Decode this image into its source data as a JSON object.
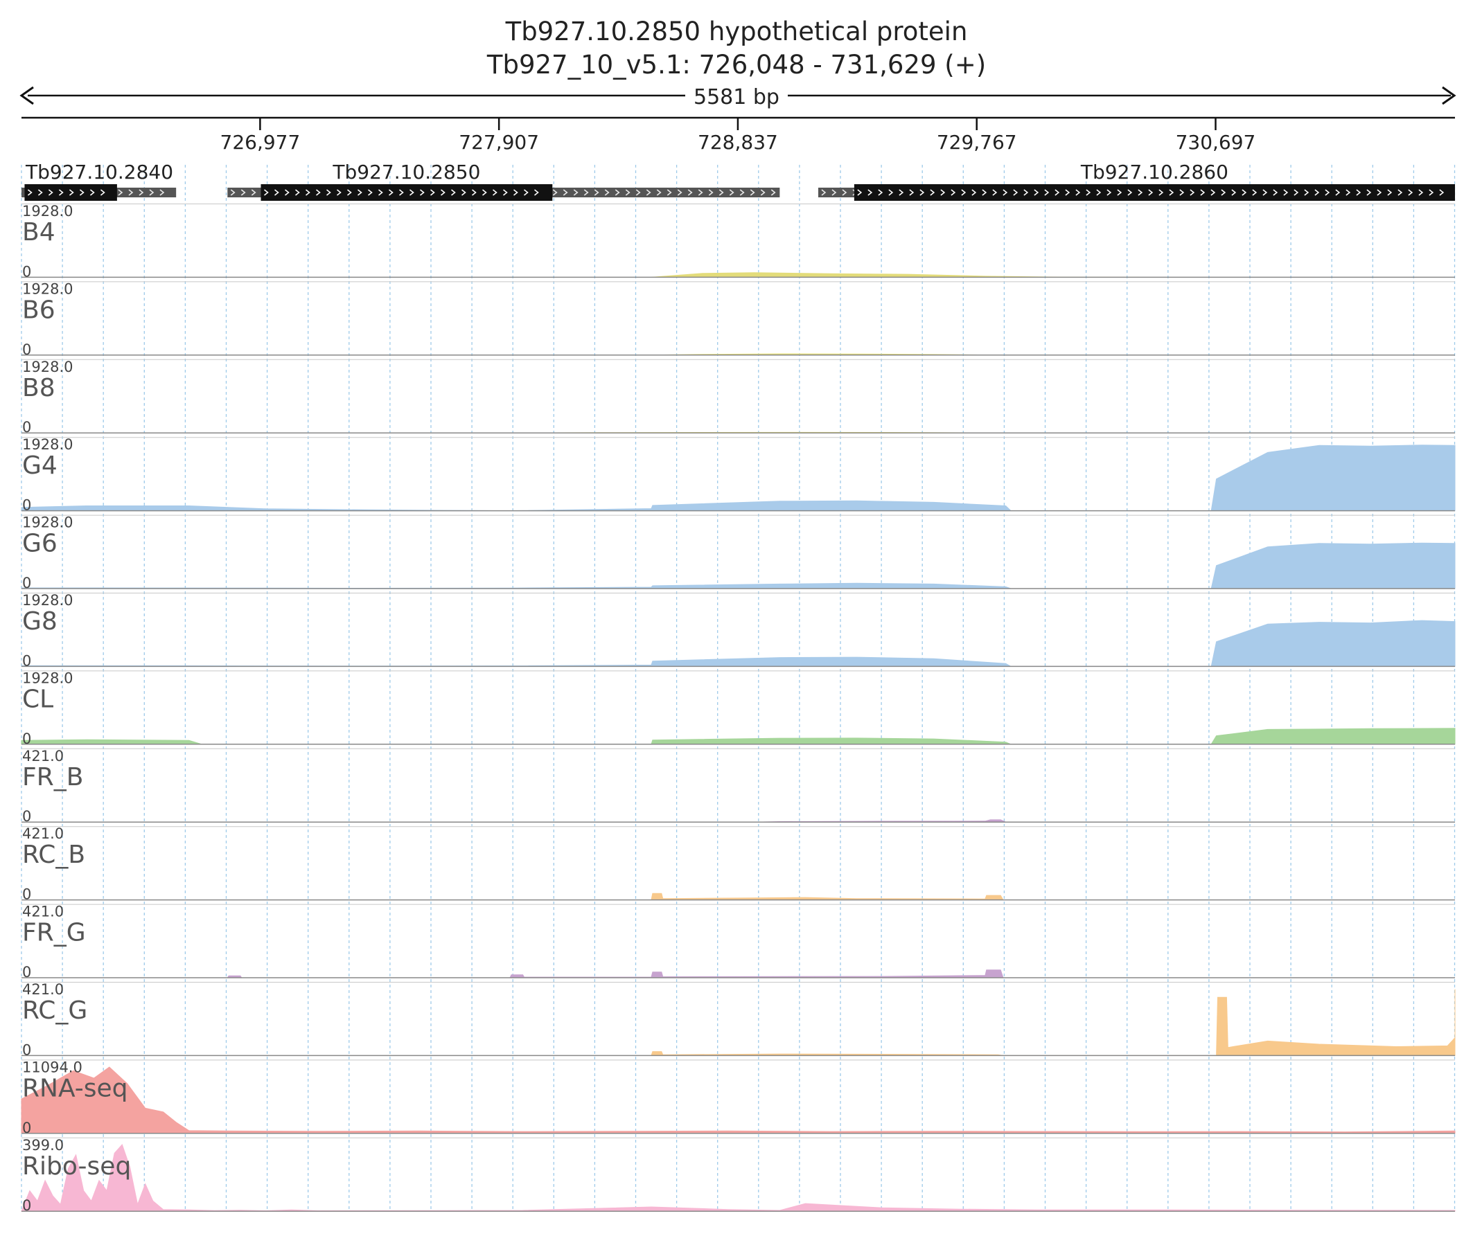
{
  "header": {
    "title": "Tb927.10.2850  hypothetical protein",
    "location": "Tb927_10_v5.1: 726,048 - 731,629 (+)",
    "span_label": "5581 bp"
  },
  "chart_data": {
    "type": "area",
    "title": "Tb927.10.2850  hypothetical protein",
    "chromosome": "Tb927_10_v5.1",
    "xlim": [
      726048,
      731629
    ],
    "x_ticks": [
      726977,
      727907,
      728837,
      729767,
      730697
    ],
    "x_tick_labels": [
      "726,977",
      "727,907",
      "728,837",
      "729,767",
      "730,697"
    ],
    "grid": true,
    "genes": [
      {
        "name": "Tb927.10.2840",
        "strand": "+",
        "utr_start": 726048,
        "cds_start": 726060,
        "cds_end": 726420,
        "utr_end": 726650
      },
      {
        "name": "Tb927.10.2850",
        "strand": "+",
        "utr_start": 726850,
        "cds_start": 726980,
        "cds_end": 728115,
        "utr_end": 729000
      },
      {
        "name": "Tb927.10.2860",
        "strand": "+",
        "utr_start": 729150,
        "cds_start": 729290,
        "cds_end": 731629,
        "utr_end": 731629
      }
    ],
    "tracks": [
      {
        "name": "B4",
        "max_label": "1928.0",
        "min_label": "0",
        "ymax": 1928,
        "color": "#e3dc7a",
        "x": [
          728500,
          728700,
          728900,
          729200,
          729500,
          729800,
          730100,
          730400
        ],
        "y": [
          0,
          110,
          130,
          100,
          85,
          30,
          4,
          0
        ]
      },
      {
        "name": "B6",
        "max_label": "1928.0",
        "min_label": "0",
        "ymax": 1928,
        "color": "#e3dc7a",
        "x": [
          728500,
          728700,
          729000,
          729300,
          729600,
          729850
        ],
        "y": [
          0,
          20,
          35,
          32,
          18,
          0
        ]
      },
      {
        "name": "B8",
        "max_label": "1928.0",
        "min_label": "0",
        "ymax": 1928,
        "color": "#e3dc7a",
        "x": [
          727900,
          728300,
          728700,
          729100,
          729500,
          729850
        ],
        "y": [
          0,
          8,
          14,
          16,
          12,
          0
        ]
      },
      {
        "name": "G4",
        "max_label": "1928.0",
        "min_label": "0",
        "ymax": 1928,
        "color": "#a9cbea",
        "x": [
          726048,
          726300,
          726700,
          727000,
          727400,
          727950,
          728500,
          728505,
          729000,
          729300,
          729600,
          729880,
          729900,
          730680,
          730700,
          730900,
          731100,
          731300,
          731500,
          731700,
          731900,
          732000,
          732100,
          732180,
          732200
        ],
        "y": [
          95,
          140,
          140,
          55,
          25,
          0,
          60,
          150,
          270,
          280,
          240,
          140,
          0,
          0,
          900,
          1650,
          1850,
          1830,
          1860,
          1850,
          1620,
          1320,
          800,
          60,
          0
        ]
      },
      {
        "name": "G6",
        "max_label": "1928.0",
        "min_label": "0",
        "ymax": 1928,
        "color": "#a9cbea",
        "x": [
          726048,
          726600,
          727400,
          727950,
          728500,
          728505,
          729000,
          729300,
          729600,
          729880,
          729900,
          730680,
          730700,
          730900,
          731100,
          731300,
          731500,
          731700,
          731900,
          732000,
          732100,
          732180,
          732200
        ],
        "y": [
          20,
          18,
          10,
          15,
          40,
          80,
          130,
          150,
          130,
          50,
          0,
          0,
          650,
          1180,
          1280,
          1260,
          1290,
          1280,
          1150,
          950,
          600,
          40,
          0
        ]
      },
      {
        "name": "G8",
        "max_label": "1928.0",
        "min_label": "0",
        "ymax": 1928,
        "color": "#a9cbea",
        "x": [
          726048,
          726600,
          727400,
          727950,
          728500,
          728505,
          729000,
          729300,
          729600,
          729880,
          729900,
          730680,
          730700,
          730900,
          731100,
          731300,
          731500,
          731700,
          731900,
          732000,
          732100,
          732180,
          732200
        ],
        "y": [
          20,
          18,
          10,
          15,
          40,
          150,
          250,
          260,
          220,
          80,
          0,
          0,
          700,
          1200,
          1250,
          1230,
          1300,
          1270,
          1100,
          900,
          560,
          40,
          0
        ]
      },
      {
        "name": "CL",
        "max_label": "1928.0",
        "min_label": "0",
        "ymax": 1928,
        "color": "#a6d69a",
        "x": [
          726048,
          726300,
          726700,
          726750,
          728500,
          728505,
          729000,
          729300,
          729600,
          729880,
          729900,
          730680,
          730700,
          730900,
          731300,
          731700,
          731950,
          732100,
          732180,
          732200
        ],
        "y": [
          110,
          130,
          110,
          0,
          0,
          120,
          170,
          175,
          150,
          60,
          0,
          0,
          240,
          420,
          440,
          450,
          420,
          300,
          80,
          0
        ]
      },
      {
        "name": "FR_B",
        "max_label": "421.0",
        "min_label": "0",
        "ymax": 421,
        "color": "#c7a3cf",
        "x": [
          728900,
          729000,
          729400,
          729800,
          729820,
          729860,
          729880
        ],
        "y": [
          0,
          3,
          5,
          6,
          14,
          14,
          0
        ]
      },
      {
        "name": "RC_B",
        "max_label": "421.0",
        "min_label": "0",
        "ymax": 421,
        "color": "#f8c98c",
        "x": [
          728500,
          728505,
          728540,
          728545,
          728900,
          729100,
          729300,
          729800,
          729805,
          729860,
          729870
        ],
        "y": [
          0,
          40,
          40,
          8,
          12,
          15,
          8,
          6,
          28,
          28,
          0
        ]
      },
      {
        "name": "FR_G",
        "max_label": "421.0",
        "min_label": "0",
        "ymax": 421,
        "color": "#c7a3cf",
        "x": [
          726850,
          726855,
          726900,
          726905,
          727950,
          727955,
          728000,
          728005,
          728500,
          728505,
          728540,
          728545,
          729400,
          729780,
          729800,
          729805,
          729860,
          729870
        ],
        "y": [
          0,
          12,
          12,
          0,
          0,
          18,
          18,
          4,
          4,
          35,
          35,
          6,
          8,
          14,
          14,
          48,
          48,
          0
        ]
      },
      {
        "name": "RC_G",
        "max_label": "421.0",
        "min_label": "0",
        "ymax": 421,
        "color": "#f8c98c",
        "x": [
          728500,
          728505,
          728540,
          728545,
          729000,
          729400,
          729850,
          729870,
          730700,
          730705,
          730740,
          730745,
          730900,
          731100,
          731400,
          731600,
          731750,
          731850,
          731950,
          732000,
          732050,
          732055,
          732090,
          732095
        ],
        "y": [
          0,
          25,
          25,
          5,
          10,
          8,
          5,
          0,
          0,
          360,
          360,
          50,
          90,
          70,
          55,
          60,
          110,
          85,
          80,
          65,
          75,
          410,
          400,
          0
        ]
      },
      {
        "name": "RNA-seq",
        "max_label": "11094.0",
        "min_label": "0",
        "ymax": 11094,
        "color": "#f4a3a0",
        "x": [
          726048,
          726150,
          726250,
          726330,
          726390,
          726460,
          726530,
          726600,
          726650,
          726700,
          726850,
          727200,
          727600,
          728000,
          728400,
          728800,
          729200,
          729600,
          730000,
          730400,
          730800,
          731200,
          731629
        ],
        "y": [
          5600,
          7800,
          10200,
          9000,
          10800,
          8100,
          4100,
          3500,
          1800,
          450,
          400,
          350,
          400,
          300,
          350,
          400,
          300,
          350,
          320,
          280,
          300,
          250,
          400
        ]
      },
      {
        "name": "Ribo-seq",
        "max_label": "399.0",
        "min_label": "0",
        "ymax": 399,
        "color": "#f7b7d3",
        "x": [
          726048,
          726080,
          726110,
          726140,
          726170,
          726200,
          726230,
          726260,
          726290,
          726320,
          726350,
          726380,
          726410,
          726440,
          726470,
          726500,
          726530,
          726560,
          726600,
          726700,
          726800,
          726900,
          727000,
          727100,
          727200,
          728000,
          728500,
          728800,
          729000,
          729100,
          729400,
          729700,
          730000,
          730500,
          731000,
          731629
        ],
        "y": [
          0,
          120,
          60,
          180,
          90,
          40,
          250,
          330,
          120,
          60,
          180,
          120,
          340,
          390,
          260,
          40,
          160,
          60,
          10,
          8,
          4,
          6,
          3,
          8,
          3,
          5,
          25,
          10,
          5,
          45,
          20,
          12,
          8,
          8,
          6,
          5
        ]
      }
    ]
  }
}
